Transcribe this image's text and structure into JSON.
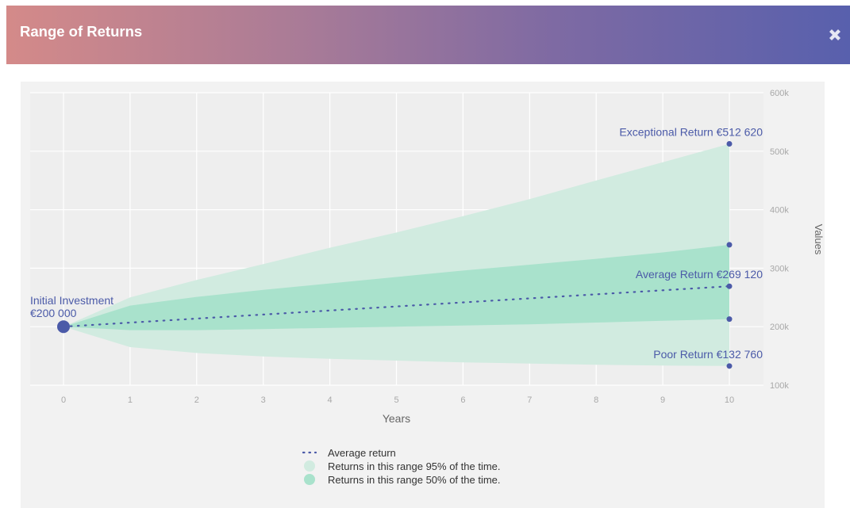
{
  "header": {
    "title": "Range of Returns",
    "close_icon": "close-icon"
  },
  "colors": {
    "header_gradient": [
      "#d48a89",
      "#a97b97",
      "#7e6aa3",
      "#5860ad"
    ],
    "band_95": "#d1ebe0",
    "band_50": "#a9e2cc",
    "accent": "#4b5aa8",
    "panel_bg": "#f2f2f2"
  },
  "chart_data": {
    "type": "area",
    "xlabel": "Years",
    "ylabel": "Values",
    "xlim": [
      0,
      10
    ],
    "ylim": [
      100000,
      600000
    ],
    "x_ticks": [
      0,
      1,
      2,
      3,
      4,
      5,
      6,
      7,
      8,
      9,
      10
    ],
    "x_tick_labels": [
      "0",
      "1",
      "2",
      "3",
      "4",
      "5",
      "6",
      "7",
      "8",
      "9",
      "10"
    ],
    "y_ticks": [
      100000,
      200000,
      300000,
      400000,
      500000,
      600000
    ],
    "y_tick_labels": [
      "100k",
      "200k",
      "300k",
      "400k",
      "500k",
      "600k"
    ],
    "y_axis_side": "right",
    "grid": true,
    "legend_position": "bottom",
    "series": [
      {
        "name": "Average return",
        "style": "dotted-line",
        "x": [
          0,
          10
        ],
        "y": [
          200000,
          269120
        ]
      },
      {
        "name": "Returns in this range 95% of the time.",
        "style": "band",
        "x": [
          0,
          1,
          2,
          3,
          4,
          5,
          6,
          7,
          8,
          9,
          10
        ],
        "upper": [
          200000,
          250000,
          280000,
          307000,
          335000,
          361000,
          389000,
          418000,
          450000,
          481000,
          512620
        ],
        "lower": [
          200000,
          165000,
          155000,
          149000,
          145000,
          142000,
          139000,
          137000,
          135000,
          133500,
          132760
        ]
      },
      {
        "name": "Returns in this range 50% of the time.",
        "style": "band",
        "x": [
          0,
          1,
          2,
          3,
          4,
          5,
          6,
          7,
          8,
          9,
          10
        ],
        "upper": [
          200000,
          236000,
          251000,
          263000,
          274000,
          285000,
          296000,
          306000,
          316000,
          327000,
          340000
        ],
        "lower": [
          200000,
          194000,
          194000,
          196000,
          198000,
          200000,
          202000,
          204000,
          207000,
          210000,
          213000
        ]
      }
    ],
    "markers": [
      {
        "x": 0,
        "y": 200000,
        "size": "large"
      },
      {
        "x": 10,
        "y": 512620,
        "size": "small"
      },
      {
        "x": 10,
        "y": 340000,
        "size": "small"
      },
      {
        "x": 10,
        "y": 269120,
        "size": "small"
      },
      {
        "x": 10,
        "y": 213000,
        "size": "small"
      },
      {
        "x": 10,
        "y": 132760,
        "size": "small"
      }
    ],
    "annotations": [
      {
        "lines": [
          "Initial Investment",
          "€200 000"
        ],
        "x": 0,
        "y": 200000,
        "anchor": "left"
      },
      {
        "lines": [
          "Exceptional Return €512 620"
        ],
        "x": 10,
        "y": 512620,
        "anchor": "right"
      },
      {
        "lines": [
          "Average Return €269 120"
        ],
        "x": 10,
        "y": 269120,
        "anchor": "right"
      },
      {
        "lines": [
          "Poor Return €132 760"
        ],
        "x": 10,
        "y": 132760,
        "anchor": "right"
      }
    ]
  }
}
